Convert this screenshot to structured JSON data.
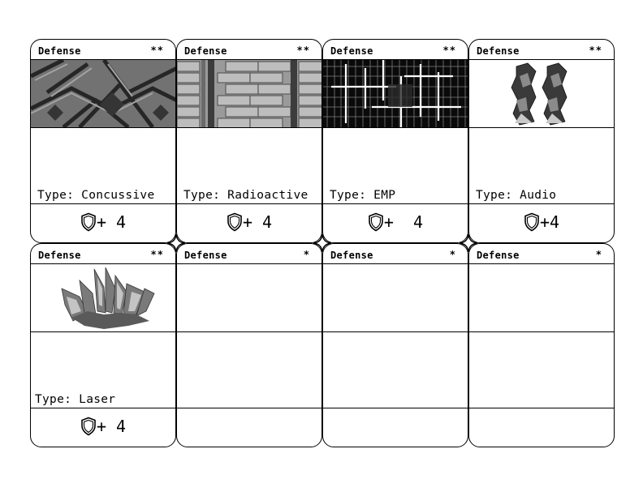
{
  "cards": [
    {
      "title": "Defense",
      "rank": "**",
      "type": "Type: Concussive",
      "stat": "+ 4",
      "art": "grate-image",
      "shield": true
    },
    {
      "title": "Defense",
      "rank": "**",
      "type": "Type: Radioactive",
      "stat": "+ 4",
      "art": "brick-wall-image",
      "shield": true
    },
    {
      "title": "Defense",
      "rank": "**",
      "type": "Type: EMP",
      "stat": "+  4",
      "art": "circuit-grid-image",
      "shield": true
    },
    {
      "title": "Defense",
      "rank": "**",
      "type": "Type: Audio",
      "stat": "+4",
      "art": "speaker-pillars-image",
      "shield": true
    },
    {
      "title": "Defense",
      "rank": "**",
      "type": "Type: Laser",
      "stat": "+ 4",
      "art": "crystal-spikes-image",
      "shield": true
    },
    {
      "title": "Defense",
      "rank": "*",
      "type": "",
      "stat": "",
      "art": "",
      "shield": false
    },
    {
      "title": "Defense",
      "rank": "*",
      "type": "",
      "stat": "",
      "art": "",
      "shield": false
    },
    {
      "title": "Defense",
      "rank": "*",
      "type": "",
      "stat": "",
      "art": "",
      "shield": false
    }
  ],
  "icons": {
    "stat": "shield-icon",
    "joint": "four-point-star-icon"
  }
}
